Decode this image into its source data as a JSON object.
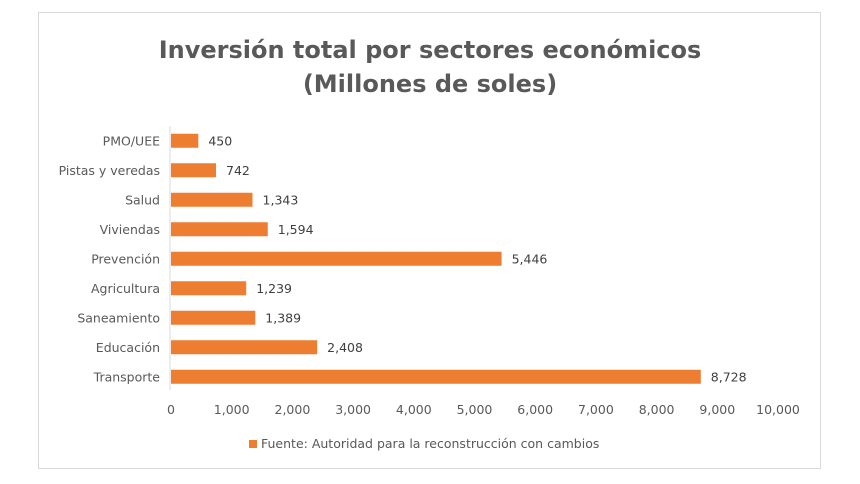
{
  "chart_data": {
    "type": "bar",
    "orientation": "horizontal",
    "title": "Inversión total por sectores económicos",
    "subtitle": "(Millones de soles)",
    "categories": [
      "PMO/UEE",
      "Pistas y veredas",
      "Salud",
      "Viviendas",
      "Prevención",
      "Agricultura",
      "Saneamiento",
      "Educación",
      "Transporte"
    ],
    "series": [
      {
        "name": "Fuente: Autoridad para la reconstrucción con cambios",
        "values": [
          450,
          742,
          1343,
          1594,
          5446,
          1239,
          1389,
          2408,
          8728
        ],
        "labels": [
          "450",
          "742",
          "1,343",
          "1,594",
          "5,446",
          "1,239",
          "1,389",
          "2,408",
          "8,728"
        ],
        "color": "#ed7d31"
      }
    ],
    "xlim": [
      0,
      10000
    ],
    "xticks": [
      "0",
      "1,000",
      "2,000",
      "3,000",
      "4,000",
      "5,000",
      "6,000",
      "7,000",
      "8,000",
      "9,000",
      "10,000"
    ],
    "grid": false,
    "legend_position": "bottom",
    "colors": {
      "bar": "#ed7d31",
      "text": "#595959"
    }
  }
}
